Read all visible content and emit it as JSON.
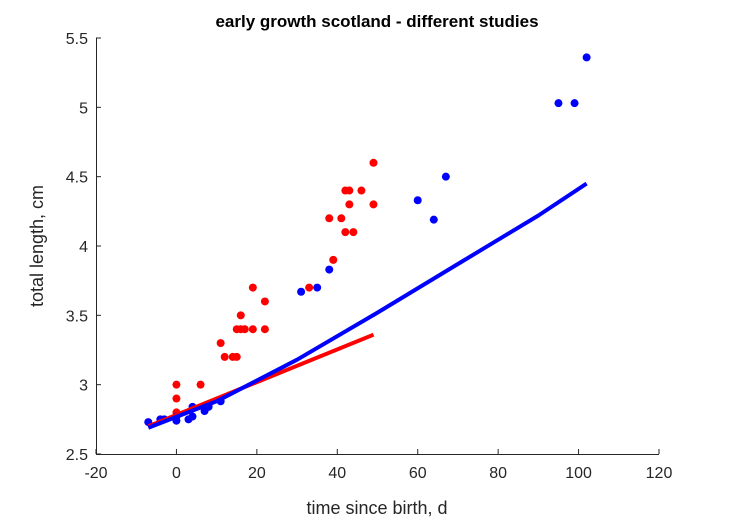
{
  "chart_data": {
    "type": "scatter",
    "title": "early growth scotland - different studies",
    "xlabel": "time since birth, d",
    "ylabel": "total length, cm",
    "xlim": [
      -20,
      120
    ],
    "ylim": [
      2.5,
      5.5
    ],
    "xticks": [
      "-20",
      "0",
      "20",
      "40",
      "60",
      "80",
      "100",
      "120"
    ],
    "yticks": [
      "2.5",
      "3",
      "3.5",
      "4",
      "4.5",
      "5",
      "5.5"
    ],
    "grid": false,
    "legend": "none",
    "series": [
      {
        "kind": "points",
        "color": "#ff0000",
        "points": [
          [
            0,
            2.8
          ],
          [
            0,
            2.9
          ],
          [
            0,
            3.0
          ],
          [
            6,
            3.0
          ],
          [
            8,
            2.85
          ],
          [
            11,
            3.3
          ],
          [
            12,
            3.2
          ],
          [
            14,
            3.2
          ],
          [
            15,
            3.2
          ],
          [
            15,
            3.4
          ],
          [
            16,
            3.4
          ],
          [
            16,
            3.5
          ],
          [
            17,
            3.4
          ],
          [
            19,
            3.4
          ],
          [
            19,
            3.7
          ],
          [
            22,
            3.4
          ],
          [
            22,
            3.6
          ],
          [
            33,
            3.7
          ],
          [
            38,
            4.2
          ],
          [
            39,
            3.9
          ],
          [
            41,
            4.2
          ],
          [
            42,
            4.1
          ],
          [
            42,
            4.4
          ],
          [
            43,
            4.3
          ],
          [
            43,
            4.4
          ],
          [
            44,
            4.1
          ],
          [
            46,
            4.4
          ],
          [
            49,
            4.3
          ],
          [
            49,
            4.6
          ]
        ]
      },
      {
        "kind": "points",
        "color": "#0000ff",
        "points": [
          [
            -7,
            2.73
          ],
          [
            -4,
            2.75
          ],
          [
            -3,
            2.75
          ],
          [
            0,
            2.74
          ],
          [
            0,
            2.77
          ],
          [
            3,
            2.75
          ],
          [
            4,
            2.77
          ],
          [
            4,
            2.84
          ],
          [
            7,
            2.81
          ],
          [
            8,
            2.84
          ],
          [
            11,
            2.88
          ],
          [
            31,
            3.67
          ],
          [
            35,
            3.7
          ],
          [
            38,
            3.83
          ],
          [
            60,
            4.33
          ],
          [
            64,
            4.19
          ],
          [
            67,
            4.5
          ],
          [
            95,
            5.03
          ],
          [
            99,
            5.03
          ],
          [
            102,
            5.36
          ]
        ]
      },
      {
        "kind": "line",
        "color": "#ff0000",
        "points": [
          [
            -7,
            2.7
          ],
          [
            49,
            3.36
          ]
        ]
      },
      {
        "kind": "line",
        "color": "#0000ff",
        "points": [
          [
            -7,
            2.69
          ],
          [
            10,
            2.88
          ],
          [
            30,
            3.18
          ],
          [
            50,
            3.52
          ],
          [
            70,
            3.87
          ],
          [
            90,
            4.22
          ],
          [
            102,
            4.45
          ]
        ]
      }
    ]
  }
}
